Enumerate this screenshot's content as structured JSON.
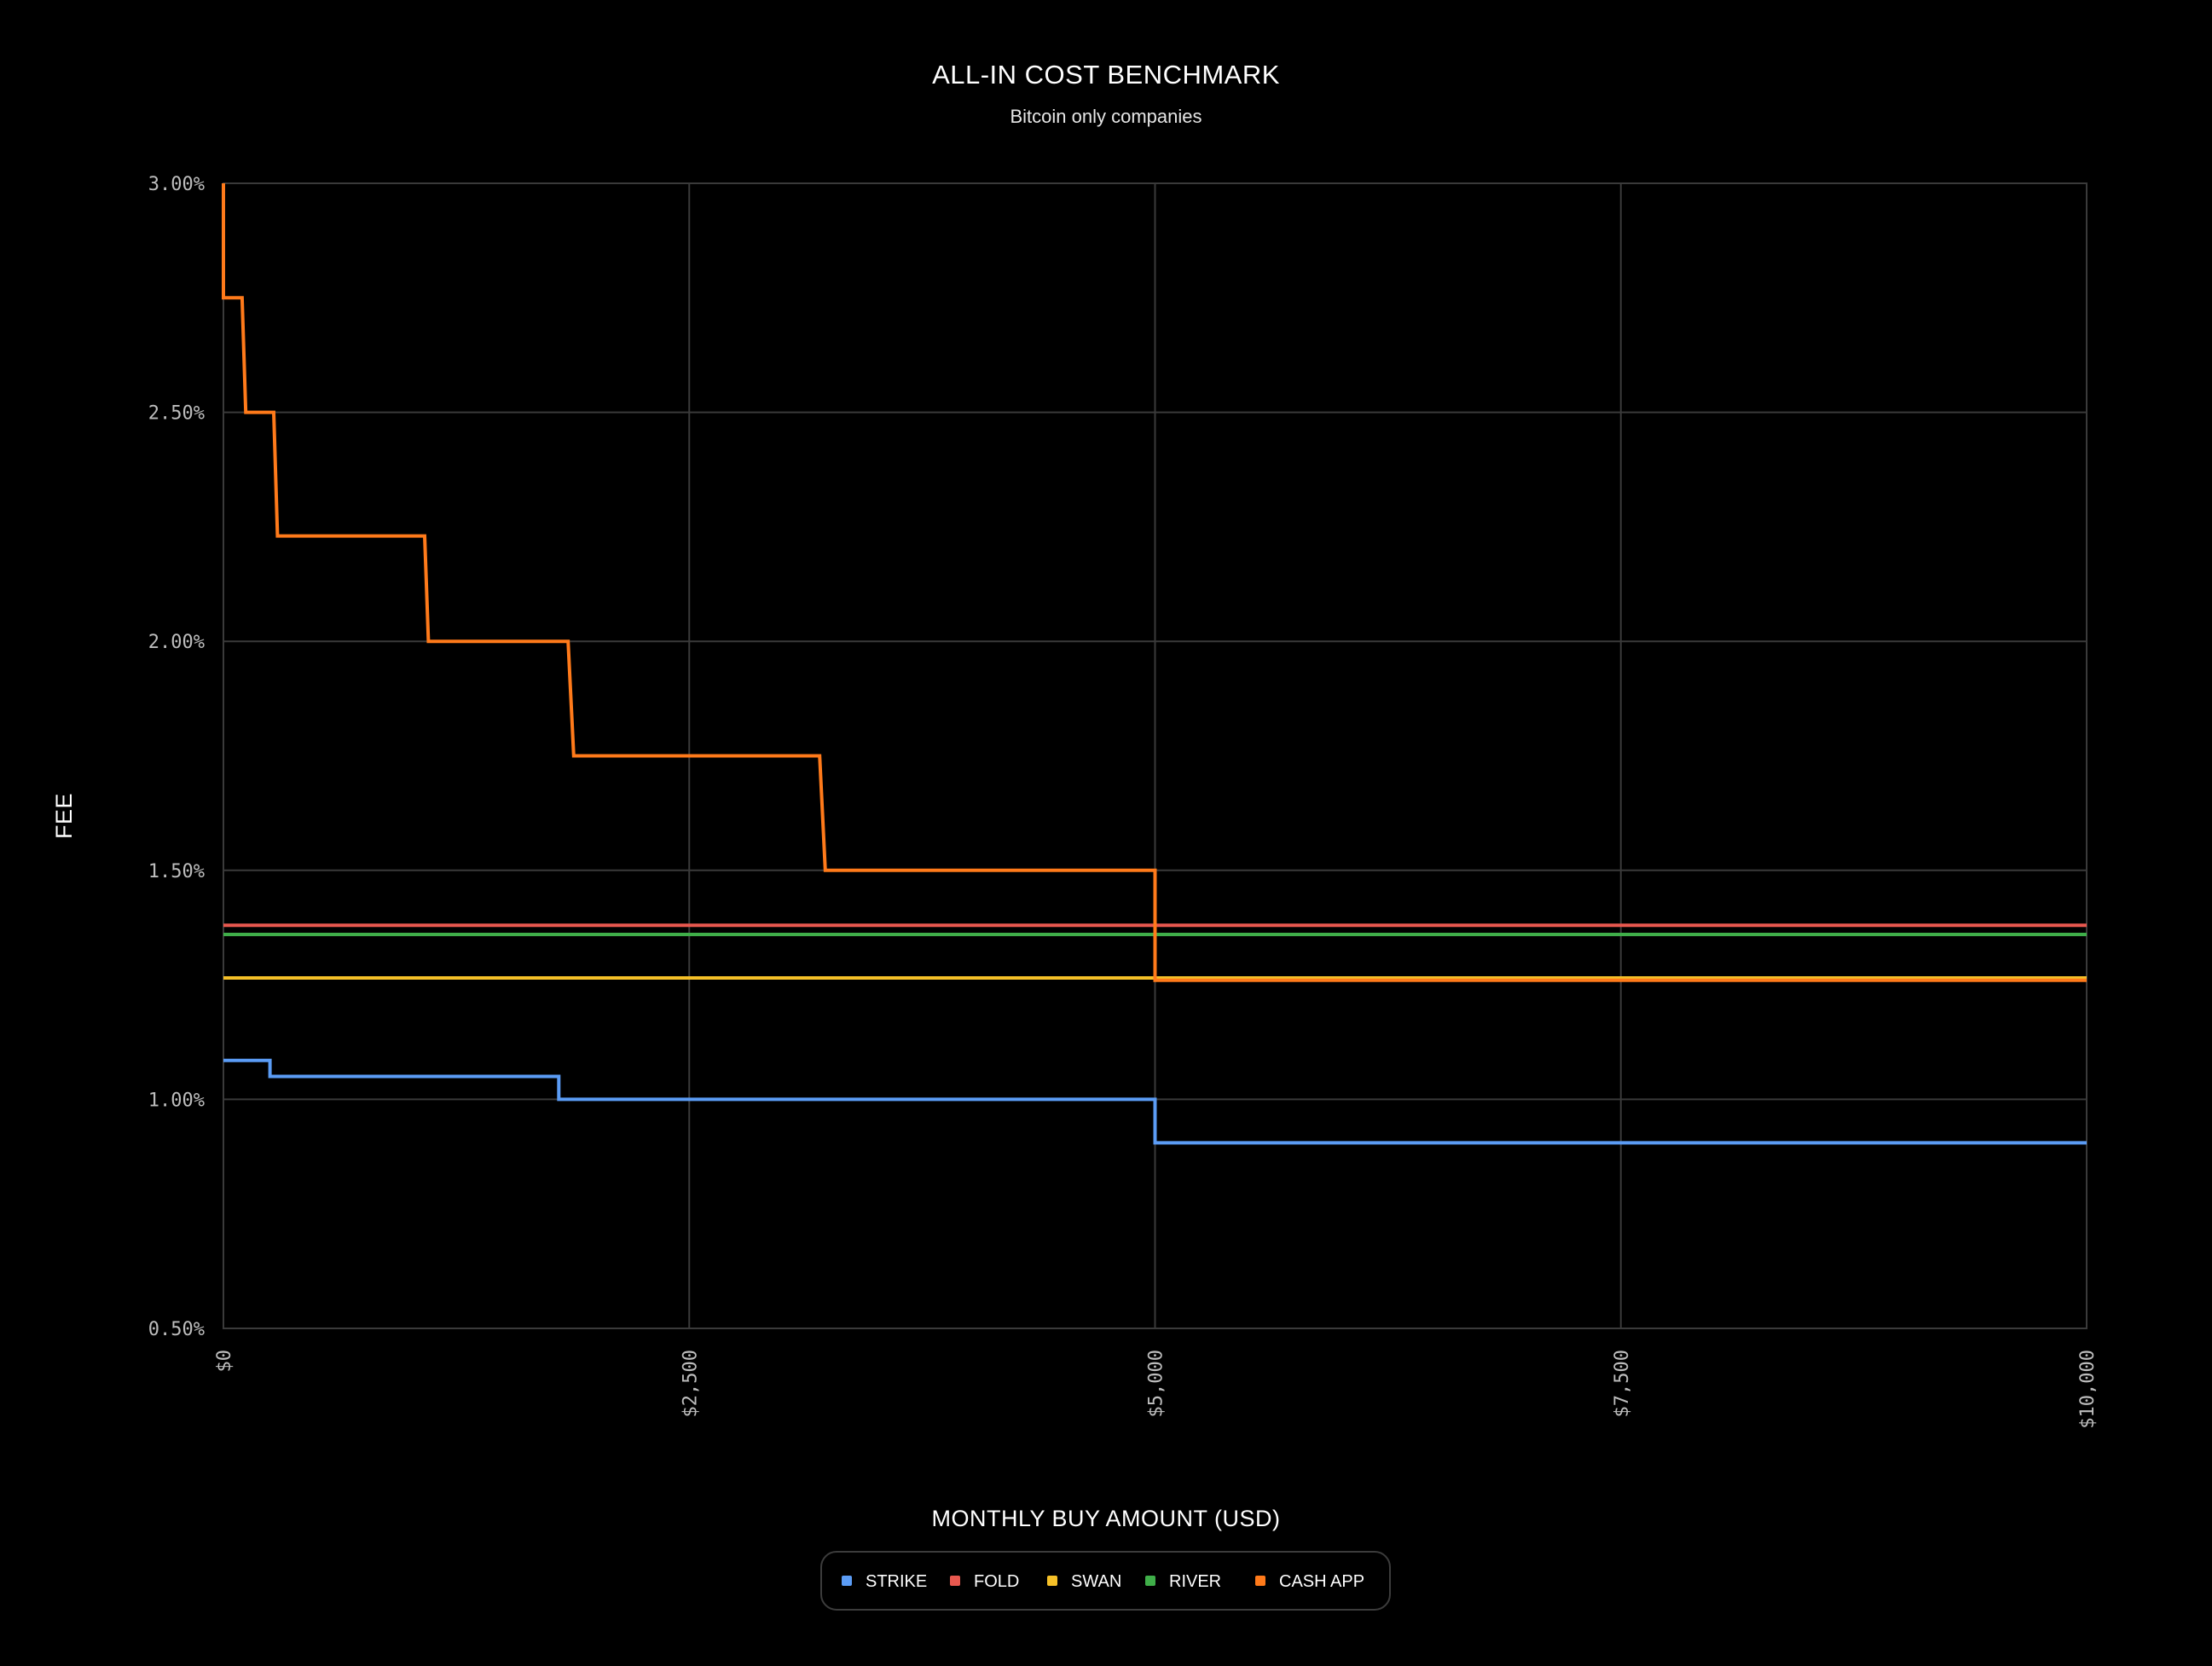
{
  "chart_data": {
    "type": "line",
    "step": true,
    "title": "ALL-IN COST BENCHMARK",
    "subtitle": "Bitcoin only companies",
    "xlabel": "MONTHLY BUY AMOUNT (USD)",
    "ylabel": "FEE",
    "xlim": [
      0,
      10000
    ],
    "ylim": [
      0.5,
      3.0
    ],
    "x_ticks": [
      {
        "value": 0,
        "label": "$0"
      },
      {
        "value": 2500,
        "label": "$2,500"
      },
      {
        "value": 5000,
        "label": "$5,000"
      },
      {
        "value": 7500,
        "label": "$7,500"
      },
      {
        "value": 10000,
        "label": "$10,000"
      }
    ],
    "y_ticks": [
      {
        "value": 3.0,
        "label": "3.00%"
      },
      {
        "value": 2.5,
        "label": "2.50%"
      },
      {
        "value": 2.0,
        "label": "2.00%"
      },
      {
        "value": 1.5,
        "label": "1.50%"
      },
      {
        "value": 1.0,
        "label": "1.00%"
      },
      {
        "value": 0.5,
        "label": "0.50%"
      }
    ],
    "grid": true,
    "legend_position": "bottom-center",
    "series": [
      {
        "name": "STRIKE",
        "color": "#5b9cf5",
        "points": [
          [
            0,
            1.085
          ],
          [
            250,
            1.085
          ],
          [
            250,
            1.05
          ],
          [
            1800,
            1.05
          ],
          [
            1800,
            1.0
          ],
          [
            5000,
            1.0
          ],
          [
            5000,
            0.905
          ],
          [
            10000,
            0.905
          ]
        ]
      },
      {
        "name": "FOLD",
        "color": "#e8584f",
        "points": [
          [
            0,
            1.38
          ],
          [
            10000,
            1.38
          ]
        ]
      },
      {
        "name": "SWAN",
        "color": "#f5c028",
        "points": [
          [
            0,
            1.265
          ],
          [
            10000,
            1.265
          ]
        ]
      },
      {
        "name": "RIVER",
        "color": "#3fae49",
        "points": [
          [
            0,
            1.36
          ],
          [
            10000,
            1.36
          ]
        ]
      },
      {
        "name": "CASH APP",
        "color": "#ff7a1a",
        "points": [
          [
            0,
            3.0
          ],
          [
            0,
            2.75
          ],
          [
            100,
            2.75
          ],
          [
            120,
            2.5
          ],
          [
            270,
            2.5
          ],
          [
            290,
            2.23
          ],
          [
            1080,
            2.23
          ],
          [
            1100,
            2.0
          ],
          [
            1850,
            2.0
          ],
          [
            1880,
            1.75
          ],
          [
            3200,
            1.75
          ],
          [
            3230,
            1.5
          ],
          [
            5000,
            1.5
          ],
          [
            5000,
            1.26
          ],
          [
            10000,
            1.26
          ]
        ]
      }
    ]
  }
}
